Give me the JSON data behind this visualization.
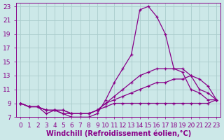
{
  "xlabel": "Windchill (Refroidissement éolien,°C)",
  "background_color": "#cce8e8",
  "grid_color": "#aacccc",
  "line_color": "#880088",
  "xlim": [
    -0.5,
    23.5
  ],
  "ylim": [
    7,
    23.5
  ],
  "xticks": [
    0,
    1,
    2,
    3,
    4,
    5,
    6,
    7,
    8,
    9,
    10,
    11,
    12,
    13,
    14,
    15,
    16,
    17,
    18,
    19,
    20,
    21,
    22,
    23
  ],
  "yticks": [
    7,
    9,
    11,
    13,
    15,
    17,
    19,
    21,
    23
  ],
  "lines": [
    {
      "x": [
        0,
        1,
        2,
        3,
        4,
        5,
        6,
        7,
        8,
        9,
        10,
        11,
        12,
        13,
        14,
        15,
        16,
        17,
        18,
        19,
        20,
        21,
        22,
        23
      ],
      "y": [
        9,
        8.5,
        8.5,
        7.5,
        8,
        7.5,
        7,
        7,
        7,
        7.5,
        9.5,
        12,
        14,
        16,
        22.5,
        23,
        21.5,
        19,
        14,
        13.5,
        11,
        10.5,
        9.5,
        9.5
      ]
    },
    {
      "x": [
        0,
        1,
        2,
        3,
        4,
        5,
        6,
        7,
        8,
        9,
        10,
        11,
        12,
        13,
        14,
        15,
        16,
        17,
        18,
        19,
        20,
        21,
        22,
        23
      ],
      "y": [
        9,
        8.5,
        8.5,
        8,
        8,
        7.5,
        7.5,
        7.5,
        7.5,
        8,
        9,
        10,
        11,
        12,
        13,
        13.5,
        14,
        14,
        14,
        14,
        13,
        11,
        10.5,
        9.5
      ]
    },
    {
      "x": [
        0,
        1,
        2,
        3,
        4,
        5,
        6,
        7,
        8,
        9,
        10,
        11,
        12,
        13,
        14,
        15,
        16,
        17,
        18,
        19,
        20,
        21,
        22,
        23
      ],
      "y": [
        9,
        8.5,
        8.5,
        8,
        8,
        8,
        7.5,
        7.5,
        7.5,
        8,
        9,
        9.5,
        10,
        10.5,
        11,
        11.5,
        12,
        12,
        12.5,
        12.5,
        13,
        12.5,
        11.5,
        9.5
      ]
    },
    {
      "x": [
        0,
        1,
        2,
        3,
        4,
        5,
        6,
        7,
        8,
        9,
        10,
        11,
        12,
        13,
        14,
        15,
        16,
        17,
        18,
        19,
        20,
        21,
        22,
        23
      ],
      "y": [
        9,
        8.5,
        8.5,
        8,
        8,
        8,
        7.5,
        7.5,
        7.5,
        8,
        8.5,
        9,
        9,
        9,
        9,
        9,
        9,
        9,
        9,
        9,
        9,
        9,
        9,
        9.5
      ]
    }
  ],
  "tick_fontsize": 6.5,
  "label_fontsize": 7
}
